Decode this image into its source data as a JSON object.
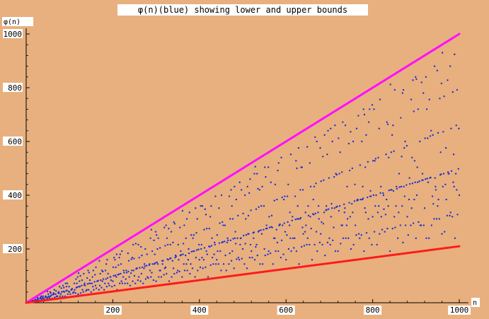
{
  "chart_data": {
    "type": "scatter",
    "title": "φ(n)(blue) showing lower and upper bounds",
    "xlabel": "n",
    "ylabel": "φ(n)",
    "xlim": [
      0,
      1000
    ],
    "ylim": [
      0,
      1000
    ],
    "x_ticks": [
      "200",
      "400",
      "600",
      "800",
      "1000"
    ],
    "y_ticks": [
      "200",
      "400",
      "600",
      "800",
      "1000"
    ],
    "x_tick_values": [
      200,
      400,
      600,
      800,
      1000
    ],
    "y_tick_values": [
      200,
      400,
      600,
      800,
      1000
    ],
    "grid": false,
    "series": [
      {
        "name": "φ(n)",
        "kind": "points",
        "color": "#1f2fd8",
        "x_range": [
          1,
          1000
        ]
      },
      {
        "kind": "line",
        "color": "#ff10ff",
        "x": [
          0,
          1000
        ],
        "y": [
          0,
          1000
        ]
      },
      {
        "kind": "line",
        "color": "#ff1a1a",
        "x": [
          0,
          1000
        ],
        "y": [
          0,
          210
        ]
      }
    ]
  },
  "colors": {
    "background": "#e8b07e",
    "axes": "#000000",
    "points": "#1f2fd8",
    "upper_bound": "#ff10ff",
    "lower_bound": "#ff1a1a"
  }
}
